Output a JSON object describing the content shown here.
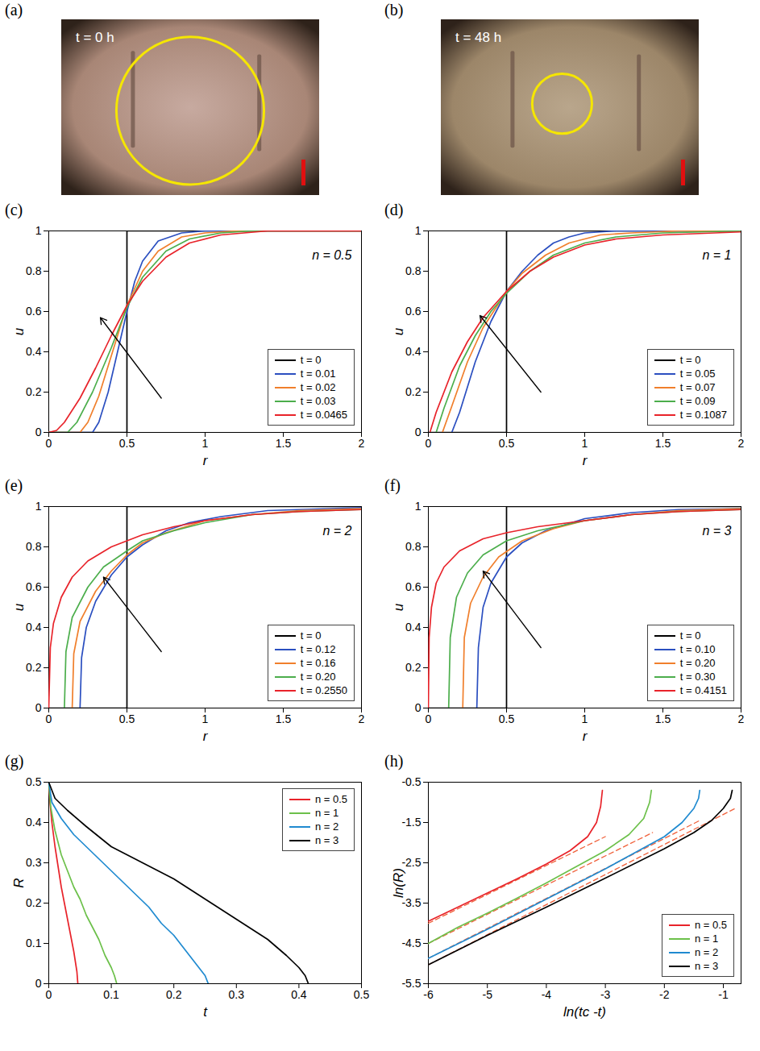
{
  "chart_data": [
    {
      "panel_label": "(a)",
      "type": "image",
      "label": "t = 0 h",
      "circle_radius": 0.42
    },
    {
      "panel_label": "(b)",
      "type": "image",
      "label": "t = 48 h",
      "circle_radius": 0.17
    },
    {
      "panel_label": "(c)",
      "type": "line",
      "annotation": "n = 0.5",
      "x_label": "r",
      "y_label": "u",
      "xlim": [
        0,
        2
      ],
      "ylim": [
        0,
        1
      ],
      "xticks": [
        0,
        0.5,
        1,
        1.5,
        2
      ],
      "yticks": [
        0,
        0.2,
        0.4,
        0.6,
        0.8,
        1
      ],
      "legend": "bottom-right",
      "arrow": [
        0.72,
        0.17,
        0.33,
        0.57
      ],
      "series": [
        {
          "name": "t = 0",
          "color": "#000000",
          "x": [
            0,
            0.5,
            0.5,
            2
          ],
          "values": [
            0,
            0,
            1,
            1
          ]
        },
        {
          "name": "t = 0.01",
          "color": "#2b4fc0",
          "x": [
            0,
            0.28,
            0.32,
            0.38,
            0.44,
            0.5,
            0.55,
            0.6,
            0.7,
            0.85,
            1,
            2
          ],
          "values": [
            0,
            0,
            0.05,
            0.2,
            0.4,
            0.6,
            0.75,
            0.85,
            0.95,
            0.99,
            1,
            1
          ]
        },
        {
          "name": "t = 0.02",
          "color": "#f07f2c",
          "x": [
            0,
            0.2,
            0.25,
            0.32,
            0.4,
            0.5,
            0.6,
            0.7,
            0.85,
            1,
            1.2,
            2
          ],
          "values": [
            0,
            0,
            0.05,
            0.18,
            0.38,
            0.63,
            0.8,
            0.9,
            0.97,
            0.99,
            1,
            1
          ]
        },
        {
          "name": "t = 0.03",
          "color": "#4cae4c",
          "x": [
            0,
            0.12,
            0.18,
            0.28,
            0.4,
            0.5,
            0.6,
            0.75,
            0.9,
            1.1,
            1.3,
            2
          ],
          "values": [
            0,
            0,
            0.05,
            0.2,
            0.42,
            0.62,
            0.77,
            0.9,
            0.96,
            0.99,
            1,
            1
          ]
        },
        {
          "name": "t = 0.0465",
          "color": "#e8232a",
          "x": [
            0,
            0.05,
            0.1,
            0.2,
            0.3,
            0.4,
            0.5,
            0.6,
            0.75,
            0.9,
            1.1,
            1.4,
            2
          ],
          "values": [
            0,
            0.01,
            0.05,
            0.17,
            0.32,
            0.48,
            0.63,
            0.75,
            0.87,
            0.94,
            0.98,
            1,
            1
          ]
        }
      ]
    },
    {
      "panel_label": "(d)",
      "type": "line",
      "annotation": "n = 1",
      "x_label": "r",
      "y_label": "u",
      "xlim": [
        0,
        2
      ],
      "ylim": [
        0,
        1
      ],
      "xticks": [
        0,
        0.5,
        1,
        1.5,
        2
      ],
      "yticks": [
        0,
        0.2,
        0.4,
        0.6,
        0.8,
        1
      ],
      "legend": "bottom-right",
      "arrow": [
        0.72,
        0.2,
        0.33,
        0.58
      ],
      "series": [
        {
          "name": "t = 0",
          "color": "#000000",
          "x": [
            0,
            0.5,
            0.5,
            2
          ],
          "values": [
            0,
            0,
            1,
            1
          ]
        },
        {
          "name": "t = 0.05",
          "color": "#2b4fc0",
          "x": [
            0.15,
            0.2,
            0.3,
            0.4,
            0.5,
            0.6,
            0.7,
            0.8,
            0.9,
            1,
            1.2,
            2
          ],
          "values": [
            0,
            0.1,
            0.35,
            0.55,
            0.7,
            0.8,
            0.88,
            0.94,
            0.97,
            0.99,
            1,
            1
          ]
        },
        {
          "name": "t = 0.07",
          "color": "#f07f2c",
          "x": [
            0.09,
            0.15,
            0.25,
            0.35,
            0.5,
            0.6,
            0.75,
            0.9,
            1.1,
            1.3,
            1.6,
            2
          ],
          "values": [
            0,
            0.13,
            0.35,
            0.52,
            0.7,
            0.79,
            0.88,
            0.94,
            0.98,
            0.99,
            1,
            1
          ]
        },
        {
          "name": "t = 0.09",
          "color": "#4cae4c",
          "x": [
            0.05,
            0.1,
            0.2,
            0.3,
            0.4,
            0.5,
            0.65,
            0.8,
            1,
            1.2,
            1.5,
            2
          ],
          "values": [
            0,
            0.12,
            0.33,
            0.48,
            0.6,
            0.69,
            0.8,
            0.88,
            0.94,
            0.97,
            0.99,
            1
          ]
        },
        {
          "name": "t = 0.1087",
          "color": "#e8232a",
          "x": [
            0.01,
            0.05,
            0.15,
            0.25,
            0.35,
            0.5,
            0.65,
            0.8,
            1,
            1.2,
            1.5,
            2
          ],
          "values": [
            0,
            0.1,
            0.3,
            0.45,
            0.57,
            0.7,
            0.8,
            0.87,
            0.93,
            0.96,
            0.98,
            0.995
          ]
        }
      ]
    },
    {
      "panel_label": "(e)",
      "type": "line",
      "annotation": "n = 2",
      "x_label": "r",
      "y_label": "u",
      "xlim": [
        0,
        2
      ],
      "ylim": [
        0,
        1
      ],
      "xticks": [
        0,
        0.5,
        1,
        1.5,
        2
      ],
      "yticks": [
        0,
        0.2,
        0.4,
        0.6,
        0.8,
        1
      ],
      "legend": "bottom-right",
      "arrow": [
        0.72,
        0.28,
        0.35,
        0.65
      ],
      "series": [
        {
          "name": "t = 0",
          "color": "#000000",
          "x": [
            0,
            0.5,
            0.5,
            2
          ],
          "values": [
            0,
            0,
            1,
            1
          ]
        },
        {
          "name": "t = 0.12",
          "color": "#2b4fc0",
          "x": [
            0.2,
            0.21,
            0.24,
            0.3,
            0.4,
            0.5,
            0.6,
            0.75,
            0.9,
            1.1,
            1.4,
            2
          ],
          "values": [
            0,
            0.25,
            0.4,
            0.53,
            0.66,
            0.75,
            0.81,
            0.88,
            0.92,
            0.95,
            0.98,
            0.995
          ]
        },
        {
          "name": "t = 0.16",
          "color": "#f07f2c",
          "x": [
            0.15,
            0.16,
            0.2,
            0.3,
            0.4,
            0.5,
            0.6,
            0.75,
            1,
            1.3,
            1.6,
            2
          ],
          "values": [
            0,
            0.27,
            0.43,
            0.58,
            0.68,
            0.76,
            0.82,
            0.87,
            0.93,
            0.96,
            0.98,
            0.99
          ]
        },
        {
          "name": "t = 0.20",
          "color": "#4cae4c",
          "x": [
            0.1,
            0.11,
            0.15,
            0.25,
            0.35,
            0.5,
            0.6,
            0.8,
            1,
            1.3,
            1.6,
            2
          ],
          "values": [
            0,
            0.28,
            0.45,
            0.6,
            0.7,
            0.78,
            0.83,
            0.88,
            0.92,
            0.96,
            0.975,
            0.985
          ]
        },
        {
          "name": "t = 0.2550",
          "color": "#e8232a",
          "x": [
            0,
            0.01,
            0.03,
            0.08,
            0.15,
            0.25,
            0.4,
            0.6,
            0.8,
            1,
            1.3,
            1.6,
            2
          ],
          "values": [
            0,
            0.3,
            0.42,
            0.55,
            0.65,
            0.73,
            0.8,
            0.86,
            0.9,
            0.93,
            0.96,
            0.975,
            0.985
          ]
        }
      ]
    },
    {
      "panel_label": "(f)",
      "type": "line",
      "annotation": "n = 3",
      "x_label": "r",
      "y_label": "u",
      "xlim": [
        0,
        2
      ],
      "ylim": [
        0,
        1
      ],
      "xticks": [
        0,
        0.5,
        1,
        1.5,
        2
      ],
      "yticks": [
        0,
        0.2,
        0.4,
        0.6,
        0.8,
        1
      ],
      "legend": "bottom-right",
      "arrow": [
        0.72,
        0.3,
        0.35,
        0.68
      ],
      "series": [
        {
          "name": "t = 0",
          "color": "#000000",
          "x": [
            0,
            0.5,
            0.5,
            2
          ],
          "values": [
            0,
            0,
            1,
            1
          ]
        },
        {
          "name": "t = 0.10",
          "color": "#2b4fc0",
          "x": [
            0.31,
            0.32,
            0.35,
            0.4,
            0.5,
            0.6,
            0.75,
            1,
            1.3,
            1.6,
            2
          ],
          "values": [
            0,
            0.3,
            0.5,
            0.62,
            0.75,
            0.82,
            0.88,
            0.94,
            0.97,
            0.985,
            0.99
          ]
        },
        {
          "name": "t = 0.20",
          "color": "#f07f2c",
          "x": [
            0.22,
            0.23,
            0.27,
            0.35,
            0.45,
            0.6,
            0.8,
            1,
            1.3,
            1.6,
            2
          ],
          "values": [
            0,
            0.35,
            0.52,
            0.65,
            0.75,
            0.83,
            0.89,
            0.93,
            0.96,
            0.98,
            0.99
          ]
        },
        {
          "name": "t = 0.30",
          "color": "#4cae4c",
          "x": [
            0.13,
            0.14,
            0.18,
            0.25,
            0.35,
            0.5,
            0.7,
            1,
            1.3,
            1.6,
            2
          ],
          "values": [
            0,
            0.35,
            0.55,
            0.67,
            0.76,
            0.83,
            0.88,
            0.93,
            0.96,
            0.975,
            0.985
          ]
        },
        {
          "name": "t = 0.4151",
          "color": "#e8232a",
          "x": [
            0,
            0.005,
            0.02,
            0.05,
            0.1,
            0.2,
            0.35,
            0.5,
            0.7,
            1,
            1.3,
            1.6,
            2
          ],
          "values": [
            0,
            0.35,
            0.5,
            0.62,
            0.7,
            0.78,
            0.84,
            0.87,
            0.9,
            0.93,
            0.96,
            0.975,
            0.985
          ]
        }
      ]
    },
    {
      "panel_label": "(g)",
      "type": "line",
      "x_label": "t",
      "y_label": "R",
      "xlim": [
        0,
        0.5
      ],
      "ylim": [
        0,
        0.5
      ],
      "xticks": [
        0,
        0.1,
        0.2,
        0.3,
        0.4,
        0.5
      ],
      "yticks": [
        0,
        0.1,
        0.2,
        0.3,
        0.4,
        0.5
      ],
      "legend": "top-right",
      "series": [
        {
          "name": "n = 0.5",
          "color": "#e8232a",
          "x": [
            0,
            0.002,
            0.005,
            0.01,
            0.015,
            0.02,
            0.025,
            0.03,
            0.035,
            0.04,
            0.045,
            0.0465
          ],
          "values": [
            0.5,
            0.45,
            0.4,
            0.34,
            0.29,
            0.24,
            0.2,
            0.16,
            0.12,
            0.08,
            0.03,
            0
          ]
        },
        {
          "name": "n = 1",
          "color": "#6cc04a",
          "x": [
            0,
            0.003,
            0.01,
            0.02,
            0.03,
            0.04,
            0.05,
            0.06,
            0.07,
            0.08,
            0.09,
            0.1,
            0.105,
            0.1087
          ],
          "values": [
            0.5,
            0.44,
            0.38,
            0.32,
            0.28,
            0.24,
            0.21,
            0.17,
            0.14,
            0.11,
            0.07,
            0.04,
            0.02,
            0
          ]
        },
        {
          "name": "n = 2",
          "color": "#1f8ad0",
          "x": [
            0,
            0.005,
            0.02,
            0.04,
            0.06,
            0.08,
            0.1,
            0.12,
            0.14,
            0.16,
            0.18,
            0.2,
            0.22,
            0.24,
            0.25,
            0.255
          ],
          "values": [
            0.5,
            0.45,
            0.41,
            0.37,
            0.34,
            0.31,
            0.28,
            0.25,
            0.22,
            0.19,
            0.15,
            0.12,
            0.08,
            0.04,
            0.02,
            0
          ]
        },
        {
          "name": "n = 3",
          "color": "#000000",
          "x": [
            0,
            0.01,
            0.03,
            0.06,
            0.1,
            0.15,
            0.2,
            0.25,
            0.3,
            0.35,
            0.38,
            0.4,
            0.41,
            0.4151
          ],
          "values": [
            0.5,
            0.46,
            0.43,
            0.39,
            0.34,
            0.3,
            0.26,
            0.21,
            0.16,
            0.11,
            0.07,
            0.04,
            0.02,
            0
          ]
        }
      ]
    },
    {
      "panel_label": "(h)",
      "type": "line",
      "x_label": "ln(tc -t)",
      "y_label": "ln(R)",
      "xlim": [
        -6,
        -0.7
      ],
      "ylim": [
        -5.5,
        -0.5
      ],
      "xticks": [
        -6,
        -5,
        -4,
        -3,
        -2,
        -1
      ],
      "yticks": [
        -5.5,
        -4.5,
        -3.5,
        -2.5,
        -1.5,
        -0.5
      ],
      "legend": "bottom-right",
      "series": [
        {
          "name": "n = 0.5",
          "color": "#e8232a",
          "x": [
            -6,
            -5.5,
            -5,
            -4.5,
            -4,
            -3.6,
            -3.3,
            -3.15,
            -3.08,
            -3.05
          ],
          "values": [
            -3.95,
            -3.6,
            -3.25,
            -2.9,
            -2.53,
            -2.2,
            -1.85,
            -1.5,
            -1.1,
            -0.7
          ]
        },
        {
          "name": "n = 1",
          "color": "#6cc04a",
          "x": [
            -6,
            -5.5,
            -5,
            -4.5,
            -4,
            -3.5,
            -3,
            -2.6,
            -2.35,
            -2.25,
            -2.22
          ],
          "values": [
            -4.5,
            -4.1,
            -3.75,
            -3.38,
            -3.0,
            -2.6,
            -2.2,
            -1.8,
            -1.4,
            -1.0,
            -0.7
          ]
        },
        {
          "name": "n = 2",
          "color": "#1f8ad0",
          "x": [
            -6,
            -5,
            -4,
            -3,
            -2.5,
            -2,
            -1.7,
            -1.5,
            -1.42,
            -1.4
          ],
          "values": [
            -4.87,
            -4.15,
            -3.4,
            -2.65,
            -2.25,
            -1.85,
            -1.5,
            -1.15,
            -0.9,
            -0.7
          ]
        },
        {
          "name": "n = 3",
          "color": "#000000",
          "x": [
            -6,
            -5,
            -4,
            -3,
            -2,
            -1.5,
            -1.2,
            -1,
            -0.88,
            -0.85
          ],
          "values": [
            -5.03,
            -4.3,
            -3.6,
            -2.88,
            -2.15,
            -1.75,
            -1.45,
            -1.15,
            -0.9,
            -0.7
          ]
        }
      ],
      "fits": [
        {
          "color": "#f0603a",
          "line_style": "dashed",
          "x": [
            -6,
            -3
          ],
          "values": [
            -4.0,
            -1.85
          ]
        },
        {
          "color": "#f0603a",
          "line_style": "dashed",
          "x": [
            -6,
            -2.2
          ],
          "values": [
            -4.5,
            -1.75
          ]
        },
        {
          "color": "#f0603a",
          "line_style": "dashed",
          "x": [
            -6,
            -1.4
          ],
          "values": [
            -4.87,
            -1.45
          ]
        },
        {
          "color": "#f0603a",
          "line_style": "dashed",
          "x": [
            -6,
            -0.8
          ],
          "values": [
            -5.03,
            -1.15
          ]
        }
      ]
    }
  ]
}
